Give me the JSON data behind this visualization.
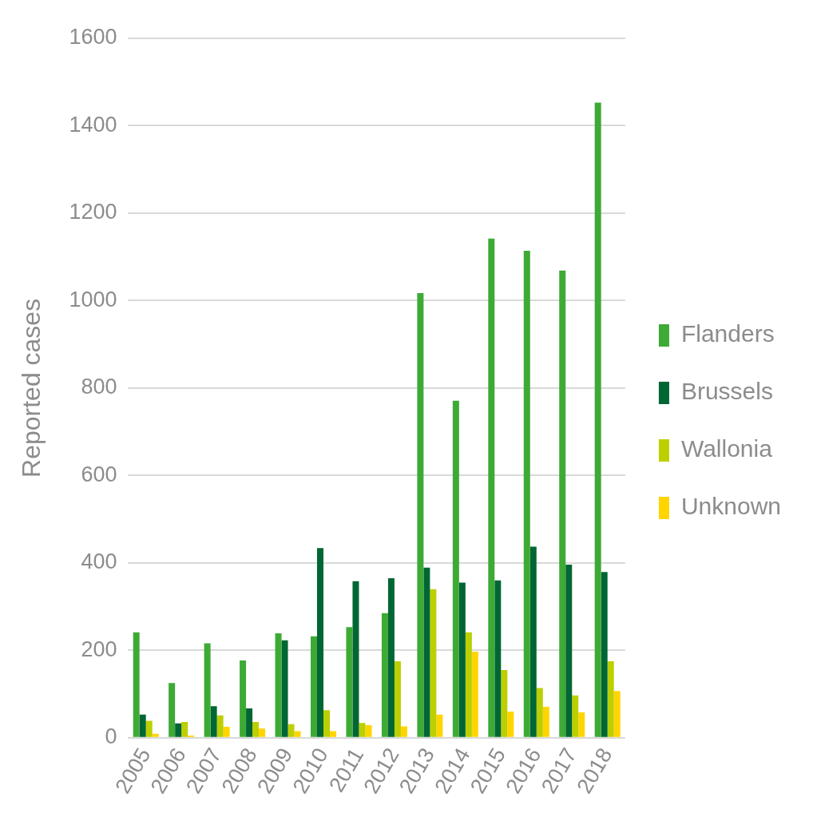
{
  "chart_data": {
    "type": "bar",
    "ylabel": "Reported cases",
    "categories": [
      "2005",
      "2006",
      "2007",
      "2008",
      "2009",
      "2010",
      "2011",
      "2012",
      "2013",
      "2014",
      "2015",
      "2016",
      "2017",
      "2018"
    ],
    "series": [
      {
        "name": "Flanders",
        "color": "#3daa35",
        "values": [
          241,
          125,
          216,
          177,
          239,
          232,
          253,
          285,
          1017,
          771,
          1142,
          1114,
          1069,
          1453
        ]
      },
      {
        "name": "Brussels",
        "color": "#006633",
        "values": [
          53,
          33,
          72,
          67,
          223,
          434,
          358,
          365,
          389,
          355,
          360,
          437,
          396,
          379
        ]
      },
      {
        "name": "Wallonia",
        "color": "#bccf00",
        "values": [
          39,
          36,
          51,
          36,
          31,
          63,
          34,
          175,
          340,
          241,
          155,
          114,
          97,
          175
        ]
      },
      {
        "name": "Unknown",
        "color": "#ffd500",
        "values": [
          9,
          5,
          25,
          21,
          15,
          15,
          29,
          26,
          53,
          197,
          60,
          71,
          58,
          107
        ]
      }
    ],
    "ylim": [
      0,
      1600
    ],
    "yticks": [
      0,
      200,
      400,
      600,
      800,
      1000,
      1200,
      1400,
      1600
    ],
    "grid": "y",
    "legend": "right"
  }
}
